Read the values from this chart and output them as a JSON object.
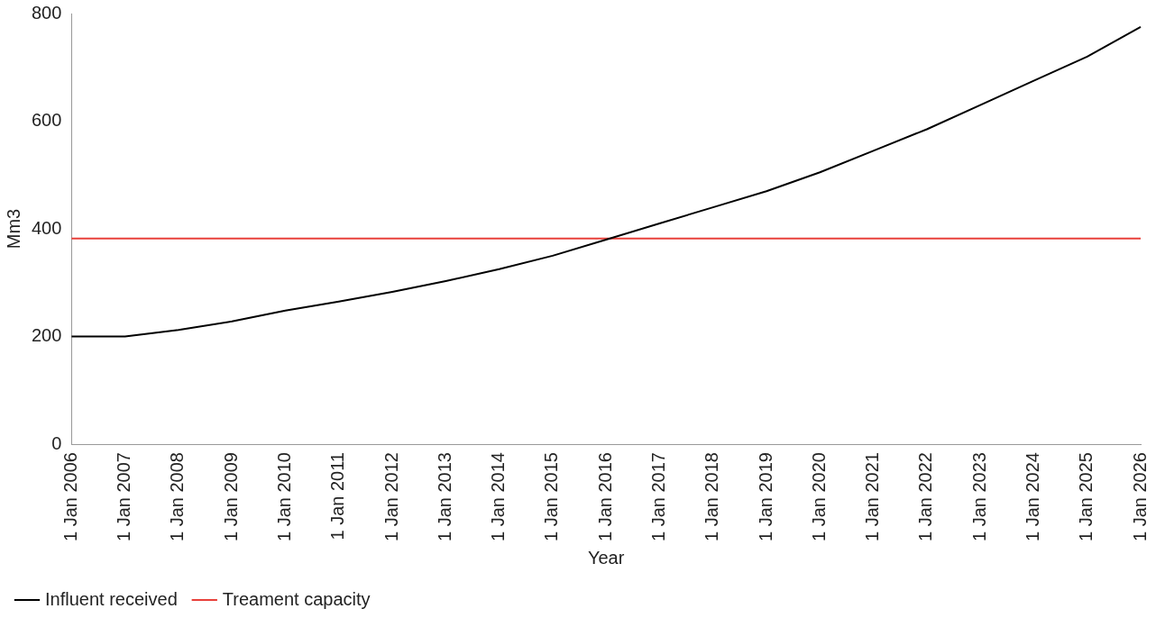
{
  "chart_data": {
    "type": "line",
    "xlabel": "Year",
    "ylabel": "Mm3",
    "categories": [
      "1 Jan 2006",
      "1 Jan 2007",
      "1 Jan 2008",
      "1 Jan 2009",
      "1 Jan 2010",
      "1 Jan 2011",
      "1 Jan 2012",
      "1 Jan 2013",
      "1 Jan 2014",
      "1 Jan 2015",
      "1 Jan 2016",
      "1 Jan 2017",
      "1 Jan 2018",
      "1 Jan 2019",
      "1 Jan 2020",
      "1 Jan 2021",
      "1 Jan 2022",
      "1 Jan 2023",
      "1 Jan 2024",
      "1 Jan 2025",
      "1 Jan 2026"
    ],
    "series": [
      {
        "name": "Influent received",
        "color": "#000000",
        "values": [
          200,
          200,
          212,
          228,
          248,
          265,
          283,
          303,
          325,
          350,
          380,
          410,
          440,
          470,
          505,
          545,
          585,
          630,
          675,
          720,
          775
        ]
      },
      {
        "name": "Treament capacity",
        "color": "#e8403a",
        "values": [
          382,
          382,
          382,
          382,
          382,
          382,
          382,
          382,
          382,
          382,
          382,
          382,
          382,
          382,
          382,
          382,
          382,
          382,
          382,
          382,
          382
        ]
      }
    ],
    "ylim": [
      0,
      800
    ],
    "yticks": [
      0,
      200,
      400,
      600,
      800
    ],
    "grid": false,
    "legend": "bottom",
    "marker": "none",
    "line_style": "solid"
  }
}
